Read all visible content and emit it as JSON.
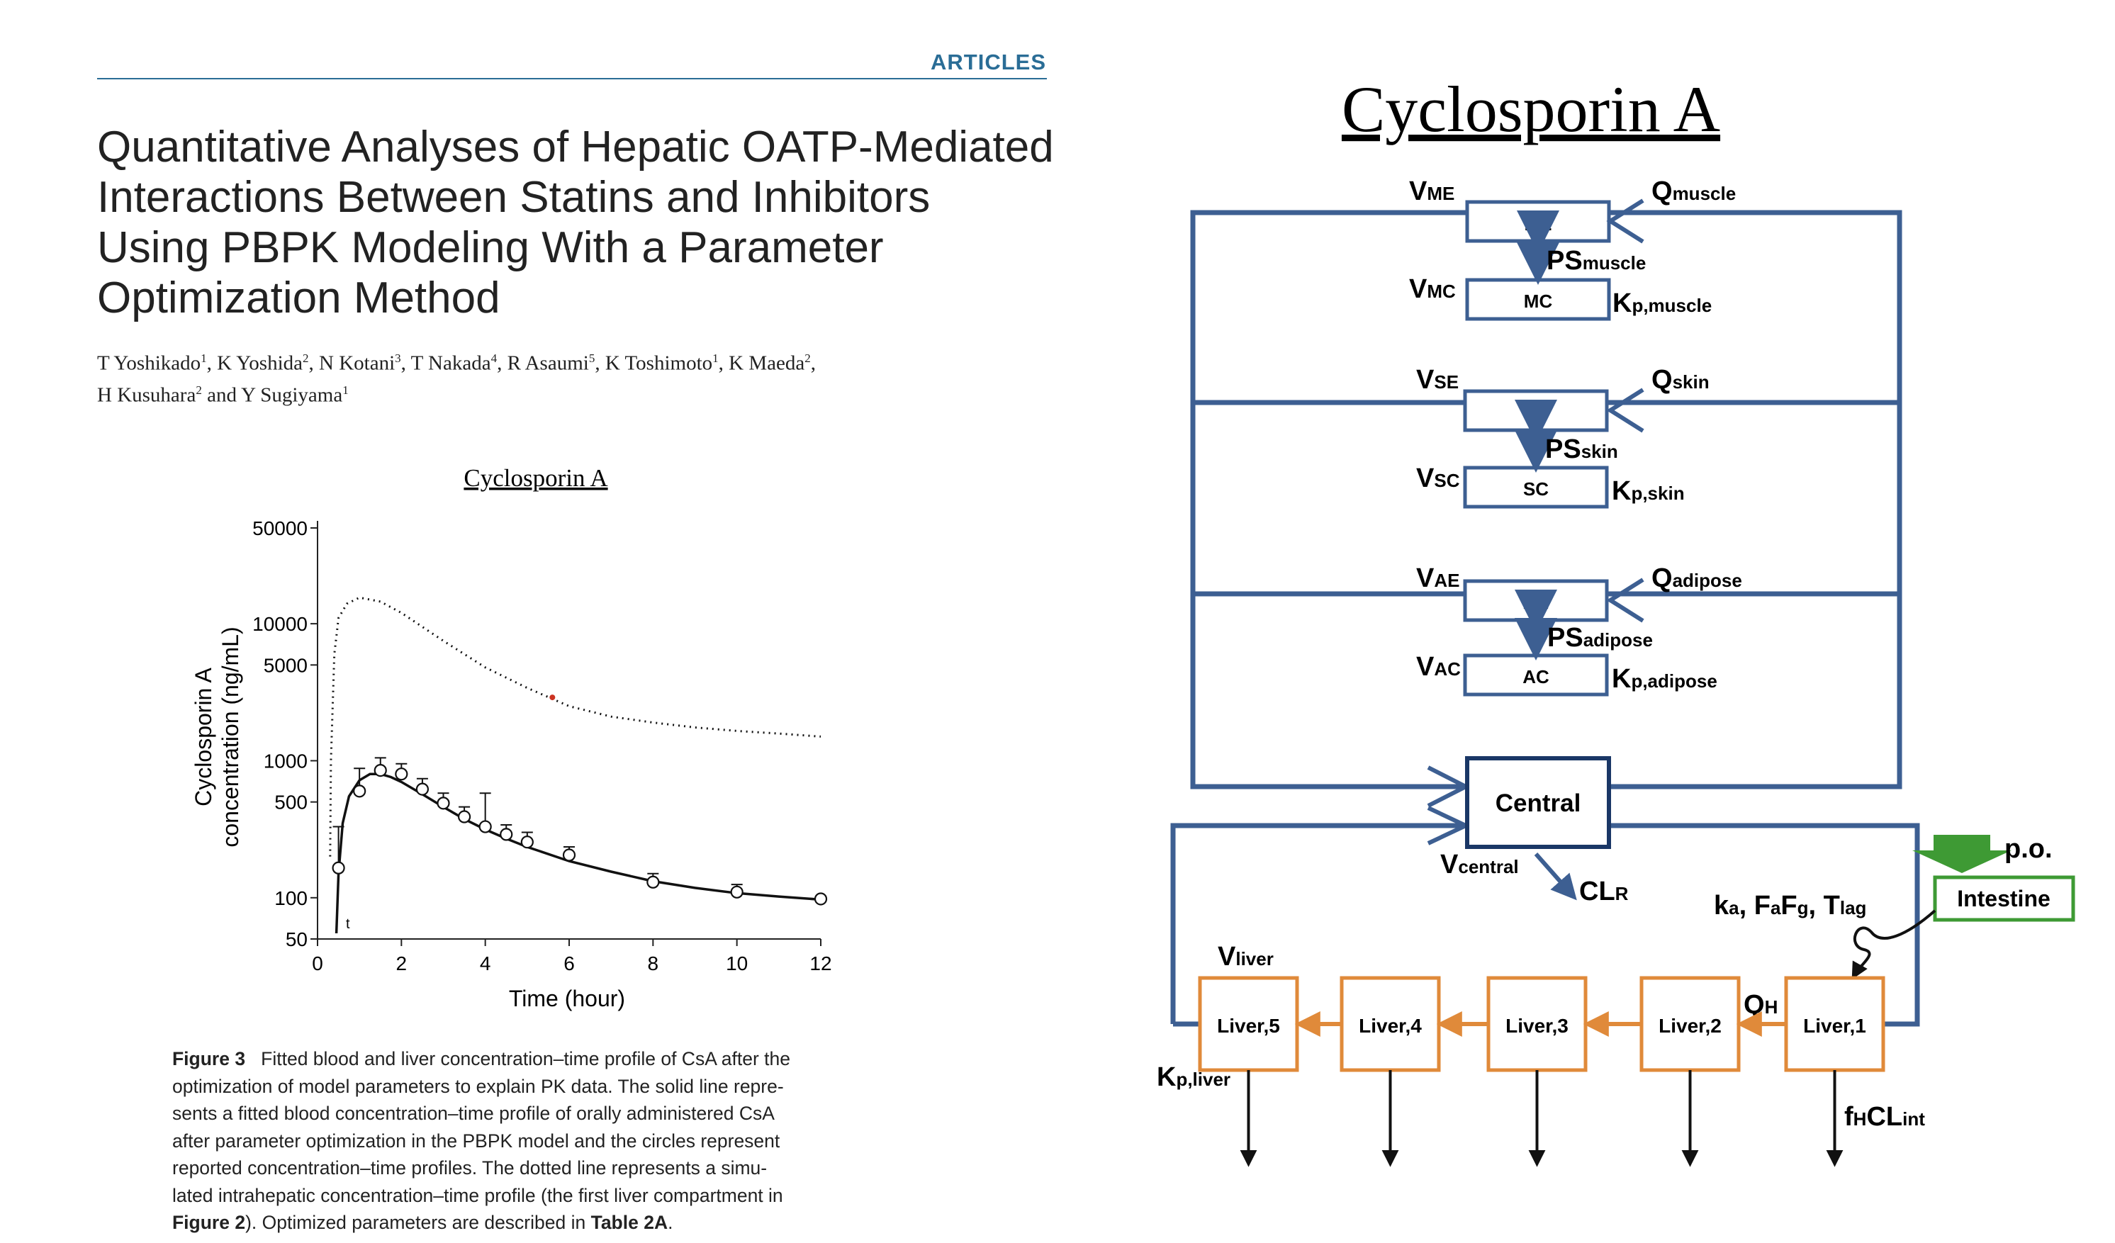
{
  "header": {
    "section": "ARTICLES"
  },
  "article": {
    "title_lines": [
      "Quantitative Analyses of Hepatic OATP-Mediated",
      "Interactions Between Statins and Inhibitors",
      "Using PBPK Modeling With a Parameter",
      "Optimization Method"
    ],
    "authors_line1": [
      {
        "name": "T Yoshikado",
        "sup": "1",
        "sep": ", "
      },
      {
        "name": "K Yoshida",
        "sup": "2",
        "sep": ", "
      },
      {
        "name": "N Kotani",
        "sup": "3",
        "sep": ", "
      },
      {
        "name": "T Nakada",
        "sup": "4",
        "sep": ", "
      },
      {
        "name": "R Asaumi",
        "sup": "5",
        "sep": ", "
      },
      {
        "name": "K Toshimoto",
        "sup": "1",
        "sep": ", "
      },
      {
        "name": "K Maeda",
        "sup": "2",
        "sep": ","
      }
    ],
    "authors_line2": [
      {
        "name": "H Kusuhara",
        "sup": "2",
        "sep": " and "
      },
      {
        "name": "Y Sugiyama",
        "sup": "1",
        "sep": ""
      }
    ]
  },
  "chart_data": {
    "type": "line",
    "title": "Cyclosporin A",
    "xlabel": "Time (hour)",
    "ylabel_line1": "Cyclosporin A",
    "ylabel_line2": "concentration (ng/mL)",
    "xlim": [
      0,
      12
    ],
    "ylim": [
      50,
      50000
    ],
    "yscale": "log",
    "x_ticks": [
      0,
      2,
      4,
      6,
      8,
      10,
      12
    ],
    "y_ticks": [
      50,
      100,
      500,
      1000,
      5000,
      10000,
      50000
    ],
    "grid": false,
    "annotation": "t",
    "series": [
      {
        "style": "dotted",
        "x": [
          0.3,
          0.32,
          0.4,
          0.5,
          0.7,
          1.0,
          1.5,
          2.0,
          3.0,
          4.0,
          5.0,
          6.0,
          7.0,
          8.0,
          9.0,
          10.0,
          11.0,
          12.0
        ],
        "y": [
          200,
          1000,
          6000,
          11000,
          14000,
          15500,
          14500,
          12000,
          7500,
          4800,
          3400,
          2500,
          2100,
          1900,
          1750,
          1650,
          1580,
          1500
        ]
      },
      {
        "style": "solid",
        "x": [
          0.45,
          0.5,
          0.6,
          0.75,
          1.0,
          1.25,
          1.5,
          1.75,
          2.0,
          2.5,
          3.0,
          3.5,
          4.0,
          4.5,
          5.0,
          6.0,
          7.0,
          8.0,
          9.0,
          10.0,
          11.0,
          12.0
        ],
        "y": [
          55,
          150,
          350,
          550,
          720,
          800,
          800,
          760,
          700,
          570,
          460,
          375,
          315,
          270,
          235,
          185,
          155,
          132,
          118,
          108,
          102,
          97
        ]
      },
      {
        "style": "markers",
        "x": [
          0.5,
          1.0,
          1.5,
          2.0,
          2.5,
          3.0,
          3.5,
          4.0,
          4.5,
          5.0,
          6.0,
          8.0,
          10.0,
          12.0
        ],
        "y": [
          165,
          600,
          850,
          800,
          620,
          490,
          390,
          330,
          290,
          255,
          205,
          130,
          110,
          98
        ],
        "err_hi": [
          330,
          880,
          1050,
          950,
          740,
          580,
          460,
          580,
          340,
          300,
          235,
          150,
          125,
          0
        ]
      }
    ],
    "outlier": {
      "x": 5.6,
      "y": 2900,
      "color": "#cc3322"
    }
  },
  "caption": {
    "label": "Figure 3",
    "text_lines": [
      "Fitted blood and liver concentration–time profile of CsA after the",
      "optimization of model parameters to explain PK data. The solid line repre-",
      "sents a fitted blood concentration–time profile of orally administered CsA",
      "after parameter optimization in the PBPK model and the circles represent",
      "reported concentration–time profiles. The dotted line represents a simu-",
      "lated intrahepatic concentration–time profile (the first liver compartment in"
    ],
    "last_ref1": "Figure 2",
    "last_mid": "). Optimized parameters are described in ",
    "last_ref2": "Table 2A",
    "last_end": "."
  },
  "diagram": {
    "title": "Cyclosporin A",
    "colors": {
      "blue": "#3d5f92",
      "orange": "#e08a3a",
      "green": "#3e9a34"
    },
    "tissues": [
      {
        "v_outer": "V",
        "v_outer_sub": "ME",
        "q": "Q",
        "q_sub": "muscle",
        "outer_box": "ME",
        "ps": "PS",
        "ps_sub": "muscle",
        "v_inner": "V",
        "v_inner_sub": "MC",
        "inner_box": "MC",
        "kp": "K",
        "kp_sub": "p,muscle"
      },
      {
        "v_outer": "V",
        "v_outer_sub": "SE",
        "q": "Q",
        "q_sub": "skin",
        "outer_box": "SE",
        "ps": "PS",
        "ps_sub": "skin",
        "v_inner": "V",
        "v_inner_sub": "SC",
        "inner_box": "SC",
        "kp": "K",
        "kp_sub": "p,skin"
      },
      {
        "v_outer": "V",
        "v_outer_sub": "AE",
        "q": "Q",
        "q_sub": "adipose",
        "outer_box": "AE",
        "ps": "PS",
        "ps_sub": "adipose",
        "v_inner": "V",
        "v_inner_sub": "AC",
        "inner_box": "AC",
        "kp": "K",
        "kp_sub": "p,adipose"
      }
    ],
    "central": {
      "label": "Central",
      "v": "V",
      "v_sub": "central",
      "cl": "CL",
      "cl_sub": "R"
    },
    "intestine": {
      "label": "Intestine",
      "po": "p.o.",
      "params": "k",
      "params_a": "a",
      "params_mid": ", F",
      "params_a2": "a",
      "params_f": "F",
      "params_g": "g",
      "params_t": ", T",
      "params_lag": "lag"
    },
    "liver": {
      "boxes": [
        "Liver,5",
        "Liver,4",
        "Liver,3",
        "Liver,2",
        "Liver,1"
      ],
      "v": "V",
      "v_sub": "liver",
      "kp": "K",
      "kp_sub": "p,liver",
      "qh": "Q",
      "qh_sub": "H",
      "clint_f": "f",
      "clint_h": "H",
      "clint_cl": "CL",
      "clint_sub": "int"
    }
  }
}
